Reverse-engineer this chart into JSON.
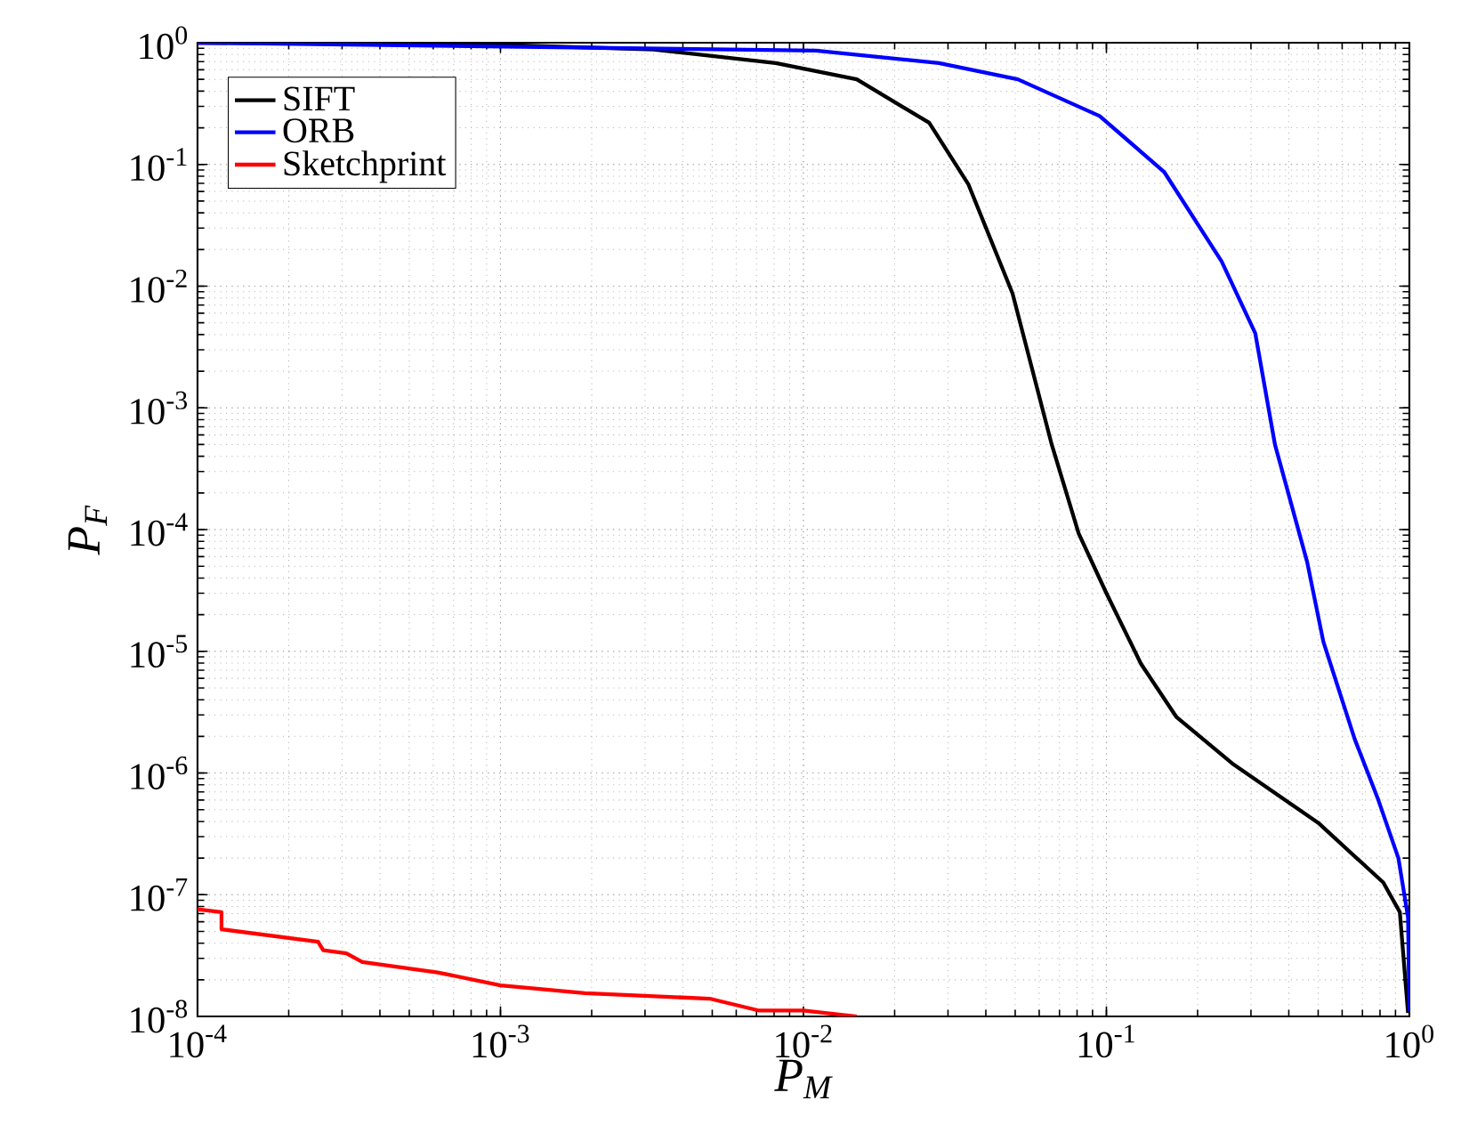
{
  "chart_data": {
    "type": "line",
    "xlabel": "P$_{M}$",
    "ylabel": "P$_{F}$",
    "log": "xy",
    "grid": true,
    "legend": "top left",
    "line_style": "solid",
    "marker": "none",
    "xlim": [
      0.0001,
      1
    ],
    "ylim": [
      1e-08,
      1
    ],
    "xticks": [
      {
        "value": 0.0001,
        "label": "10$^{-4}$"
      },
      {
        "value": 0.001,
        "label": "10$^{-3}$"
      },
      {
        "value": 0.01,
        "label": "10$^{-2}$"
      },
      {
        "value": 0.1,
        "label": "10$^{-1}$"
      },
      {
        "value": 1,
        "label": "10$^{0}$"
      }
    ],
    "yticks": [
      {
        "value": 1e-08,
        "label": "10$^{-8}$"
      },
      {
        "value": 1e-07,
        "label": "10$^{-7}$"
      },
      {
        "value": 1e-06,
        "label": "10$^{-6}$"
      },
      {
        "value": 1e-05,
        "label": "10$^{-5}$"
      },
      {
        "value": 0.0001,
        "label": "10$^{-4}$"
      },
      {
        "value": 0.001,
        "label": "10$^{-3}$"
      },
      {
        "value": 0.01,
        "label": "10$^{-2}$"
      },
      {
        "value": 0.1,
        "label": "10$^{-1}$"
      },
      {
        "value": 1,
        "label": "10$^{0}$"
      }
    ],
    "series": [
      {
        "name": "SIFT",
        "color": "#000000",
        "x": [
          0.0001,
          0.001,
          0.0032,
          0.0081,
          0.015,
          0.026,
          0.035,
          0.049,
          0.066,
          0.081,
          0.1,
          0.13,
          0.17,
          0.26,
          0.5,
          0.82,
          0.93,
          0.99
        ],
        "values": [
          1,
          0.96,
          0.88,
          0.68,
          0.5,
          0.22,
          0.069,
          0.0087,
          0.0005,
          9.3e-05,
          3e-05,
          7.9e-06,
          2.9e-06,
          1.2e-06,
          3.9e-07,
          1.26e-07,
          7.2e-08,
          1.07e-08
        ]
      },
      {
        "name": "ORB",
        "color": "#0000ff",
        "x": [
          0.0001,
          0.011,
          0.028,
          0.051,
          0.095,
          0.155,
          0.24,
          0.31,
          0.36,
          0.46,
          0.52,
          0.66,
          0.79,
          0.92,
          0.99,
          1
        ],
        "values": [
          1,
          0.86,
          0.68,
          0.5,
          0.25,
          0.087,
          0.016,
          0.0041,
          0.0005,
          5.4e-05,
          1.2e-05,
          1.9e-06,
          6e-07,
          2e-07,
          6.5e-08,
          1.1e-08
        ]
      },
      {
        "name": "Sketchprint",
        "color": "#ff0000",
        "x": [
          0.0001,
          0.00012,
          0.00012,
          0.00025,
          0.00026,
          0.00031,
          0.00035,
          0.00062,
          0.001,
          0.0019,
          0.0049,
          0.0071,
          0.01,
          0.015
        ],
        "values": [
          7.6e-08,
          7.2e-08,
          5.2e-08,
          4.1e-08,
          3.5e-08,
          3.3e-08,
          2.8e-08,
          2.3e-08,
          1.8e-08,
          1.55e-08,
          1.4e-08,
          1.12e-08,
          1.12e-08,
          1e-08
        ]
      }
    ]
  }
}
